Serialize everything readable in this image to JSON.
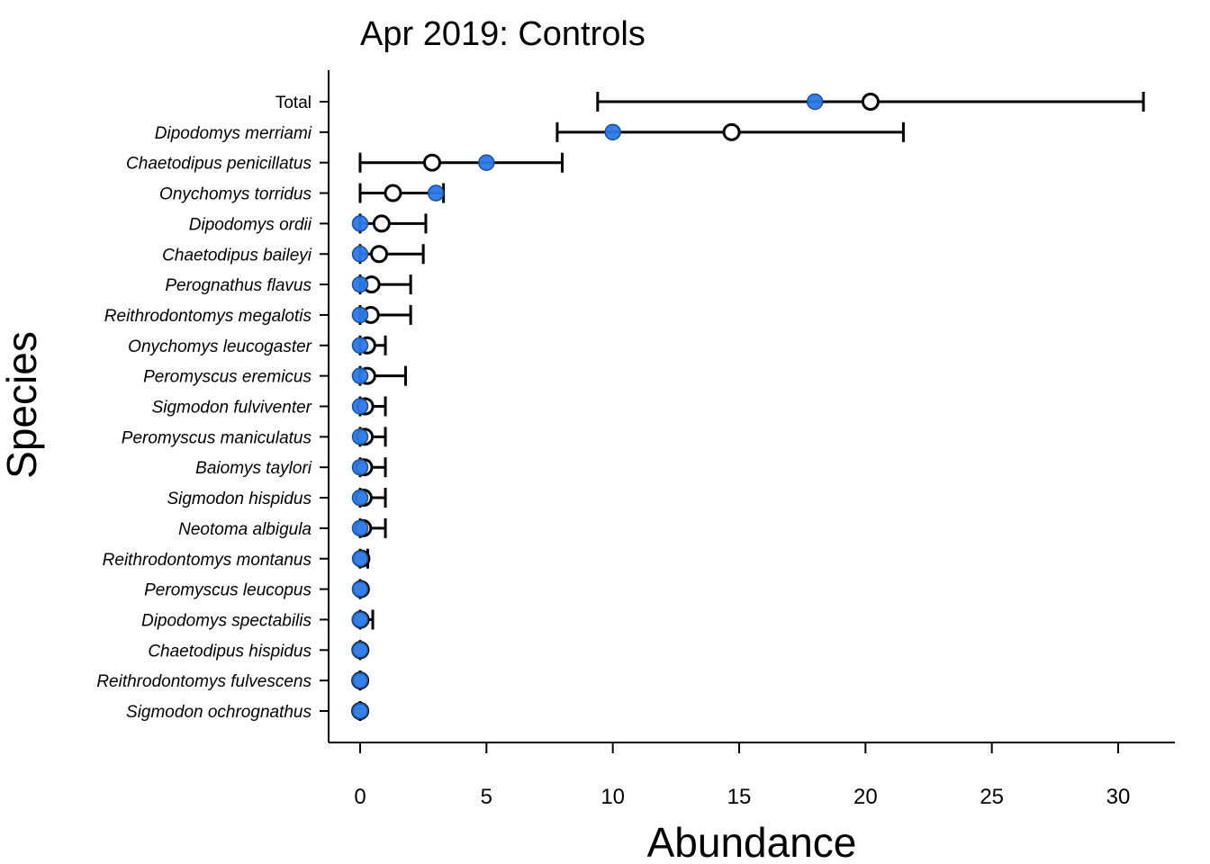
{
  "chart_data": {
    "type": "scatter",
    "title": "Apr 2019: Controls",
    "xlabel": "Abundance",
    "ylabel": "Species",
    "xlim": [
      -1.2,
      32.2
    ],
    "xticks": [
      0,
      5,
      10,
      15,
      20,
      25,
      30
    ],
    "grid": false,
    "legend": "none",
    "colors": {
      "observed": "#2a78e6",
      "observed_edge": "#1f4f8f",
      "expected": "#ffffff",
      "line": "#000000"
    },
    "categories": [
      "Total",
      "Dipodomys merriami",
      "Chaetodipus penicillatus",
      "Onychomys torridus",
      "Dipodomys ordii",
      "Chaetodipus baileyi",
      "Perognathus flavus",
      "Reithrodontomys megalotis",
      "Onychomys leucogaster",
      "Peromyscus eremicus",
      "Sigmodon fulviventer",
      "Peromyscus maniculatus",
      "Baiomys taylori",
      "Sigmodon hispidus",
      "Neotoma albigula",
      "Reithrodontomys montanus",
      "Peromyscus leucopus",
      "Dipodomys spectabilis",
      "Chaetodipus hispidus",
      "Reithrodontomys fulvescens",
      "Sigmodon ochrognathus"
    ],
    "italic": [
      false,
      true,
      true,
      true,
      true,
      true,
      true,
      true,
      true,
      true,
      true,
      true,
      true,
      true,
      true,
      true,
      true,
      true,
      true,
      true,
      true
    ],
    "observed": [
      18,
      10,
      5,
      3,
      0,
      0,
      0,
      0,
      0,
      0,
      0,
      0,
      0,
      0,
      0,
      0,
      0,
      0,
      0,
      0,
      0
    ],
    "expected": [
      20.2,
      14.7,
      2.85,
      1.3,
      0.85,
      0.75,
      0.45,
      0.42,
      0.28,
      0.28,
      0.2,
      0.18,
      0.16,
      0.14,
      0.12,
      0.05,
      0.03,
      0.02,
      0.01,
      0.005,
      0.003
    ],
    "lower": [
      9.4,
      7.8,
      0,
      0,
      0,
      0,
      0,
      0,
      0,
      0,
      0,
      0,
      0,
      0,
      0,
      0,
      0,
      0,
      0,
      0,
      0
    ],
    "upper": [
      31,
      21.5,
      8,
      3.3,
      2.6,
      2.5,
      2,
      2,
      1,
      1.8,
      1,
      1,
      1,
      1,
      1,
      0.3,
      0,
      0.5,
      0,
      0,
      0
    ]
  }
}
